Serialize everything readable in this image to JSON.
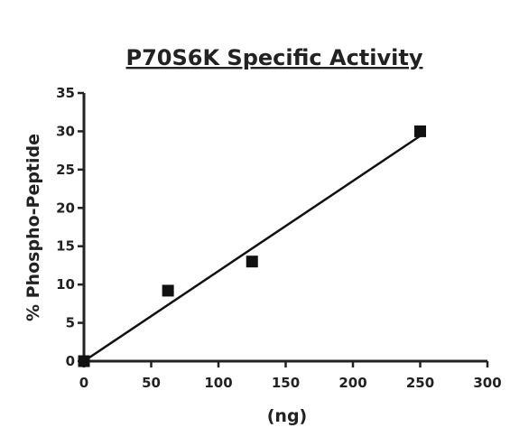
{
  "chart_data": {
    "type": "scatter",
    "title": "P70S6K Specific Activity",
    "xlabel": "(ng)",
    "ylabel": "% Phospho-Peptide",
    "xlim": [
      0,
      300
    ],
    "ylim": [
      0,
      35
    ],
    "xticks": [
      0,
      50,
      100,
      150,
      200,
      250,
      300
    ],
    "yticks": [
      0,
      5,
      10,
      15,
      20,
      25,
      30,
      35
    ],
    "grid": false,
    "series": [
      {
        "marker": "square",
        "color": "#111111",
        "points": [
          {
            "x": 0,
            "y": 0
          },
          {
            "x": 62.5,
            "y": 9.2
          },
          {
            "x": 125,
            "y": 13
          },
          {
            "x": 250,
            "y": 30
          }
        ]
      }
    ],
    "fit_line": {
      "type": "linear",
      "color": "#111111",
      "from": {
        "x": 0,
        "y": 0
      },
      "to": {
        "x": 250,
        "y": 29.4
      }
    }
  }
}
